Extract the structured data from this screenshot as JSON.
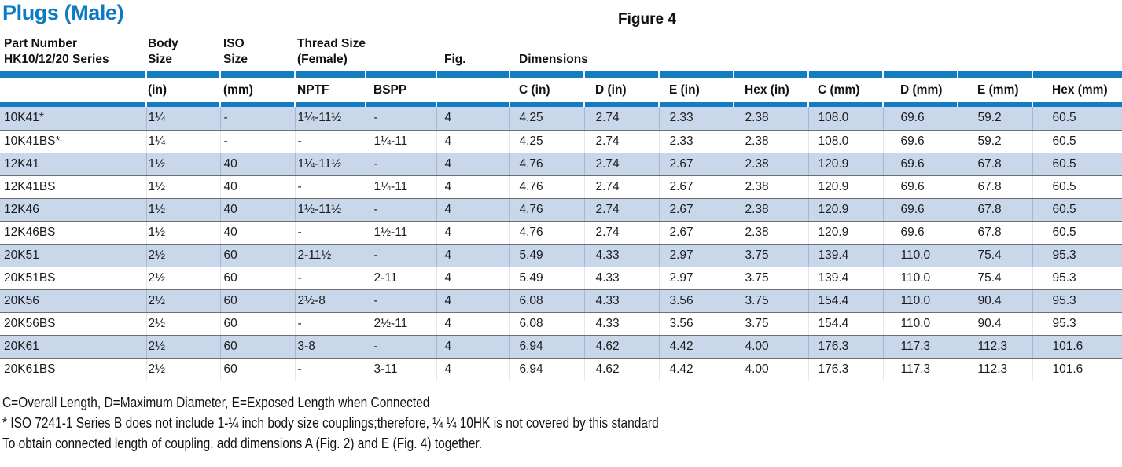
{
  "title": "Plugs (Male)",
  "figure_label": "Figure 4",
  "colors": {
    "title_blue": "#0d7ac1",
    "bar_blue": "#147dc2",
    "shaded_row_blue": "#c9d7eb"
  },
  "table": {
    "group_headers": [
      {
        "line1": "Part Number",
        "line2": "HK10/12/20 Series",
        "colspan": 1
      },
      {
        "line1": "Body",
        "line2": "Size",
        "colspan": 1
      },
      {
        "line1": "ISO",
        "line2": "Size",
        "colspan": 1
      },
      {
        "line1": "Thread Size",
        "line2": "(Female)",
        "colspan": 2
      },
      {
        "line1": "",
        "line2": "Fig.",
        "colspan": 1
      },
      {
        "line1": "",
        "line2": "Dimensions",
        "colspan": 8
      }
    ],
    "subheaders": [
      "",
      "(in)",
      "(mm)",
      "NPTF",
      "BSPP",
      "",
      "C (in)",
      "D (in)",
      "E (in)",
      "Hex (in)",
      "C (mm)",
      "D (mm)",
      "E (mm)",
      "Hex (mm)"
    ],
    "rows": [
      [
        "10K41*",
        "1¼",
        "-",
        "1¼-11½",
        "-",
        "4",
        "4.25",
        "2.74",
        "2.33",
        "2.38",
        "108.0",
        "69.6",
        "59.2",
        "60.5"
      ],
      [
        "10K41BS*",
        "1¼",
        "-",
        "-",
        "1¼-11",
        "4",
        "4.25",
        "2.74",
        "2.33",
        "2.38",
        "108.0",
        "69.6",
        "59.2",
        "60.5"
      ],
      [
        "12K41",
        "1½",
        "40",
        "1¼-11½",
        "-",
        "4",
        "4.76",
        "2.74",
        "2.67",
        "2.38",
        "120.9",
        "69.6",
        "67.8",
        "60.5"
      ],
      [
        "12K41BS",
        "1½",
        "40",
        "-",
        "1¼-11",
        "4",
        "4.76",
        "2.74",
        "2.67",
        "2.38",
        "120.9",
        "69.6",
        "67.8",
        "60.5"
      ],
      [
        "12K46",
        "1½",
        "40",
        "1½-11½",
        "-",
        "4",
        "4.76",
        "2.74",
        "2.67",
        "2.38",
        "120.9",
        "69.6",
        "67.8",
        "60.5"
      ],
      [
        "12K46BS",
        "1½",
        "40",
        "-",
        "1½-11",
        "4",
        "4.76",
        "2.74",
        "2.67",
        "2.38",
        "120.9",
        "69.6",
        "67.8",
        "60.5"
      ],
      [
        "20K51",
        "2½",
        "60",
        "2-11½",
        "-",
        "4",
        "5.49",
        "4.33",
        "2.97",
        "3.75",
        "139.4",
        "110.0",
        "75.4",
        "95.3"
      ],
      [
        "20K51BS",
        "2½",
        "60",
        "-",
        "2-11",
        "4",
        "5.49",
        "4.33",
        "2.97",
        "3.75",
        "139.4",
        "110.0",
        "75.4",
        "95.3"
      ],
      [
        "20K56",
        "2½",
        "60",
        "2½-8",
        "-",
        "4",
        "6.08",
        "4.33",
        "3.56",
        "3.75",
        "154.4",
        "110.0",
        "90.4",
        "95.3"
      ],
      [
        "20K56BS",
        "2½",
        "60",
        "-",
        "2½-11",
        "4",
        "6.08",
        "4.33",
        "3.56",
        "3.75",
        "154.4",
        "110.0",
        "90.4",
        "95.3"
      ],
      [
        "20K61",
        "2½",
        "60",
        "3-8",
        "-",
        "4",
        "6.94",
        "4.62",
        "4.42",
        "4.00",
        "176.3",
        "117.3",
        "112.3",
        "101.6"
      ],
      [
        "20K61BS",
        "2½",
        "60",
        "-",
        "3-11",
        "4",
        "6.94",
        "4.62",
        "4.42",
        "4.00",
        "176.3",
        "117.3",
        "112.3",
        "101.6"
      ]
    ]
  },
  "notes": [
    "C=Overall Length, D=Maximum Diameter, E=Exposed Length when Connected",
    "* ISO 7241-1 Series B does not include 1-¼ inch body size couplings;therefore, ¼ ¼ 10HK is not covered by this standard",
    "To obtain connected length of coupling, add dimensions A (Fig. 2) and E (Fig. 4) together."
  ]
}
